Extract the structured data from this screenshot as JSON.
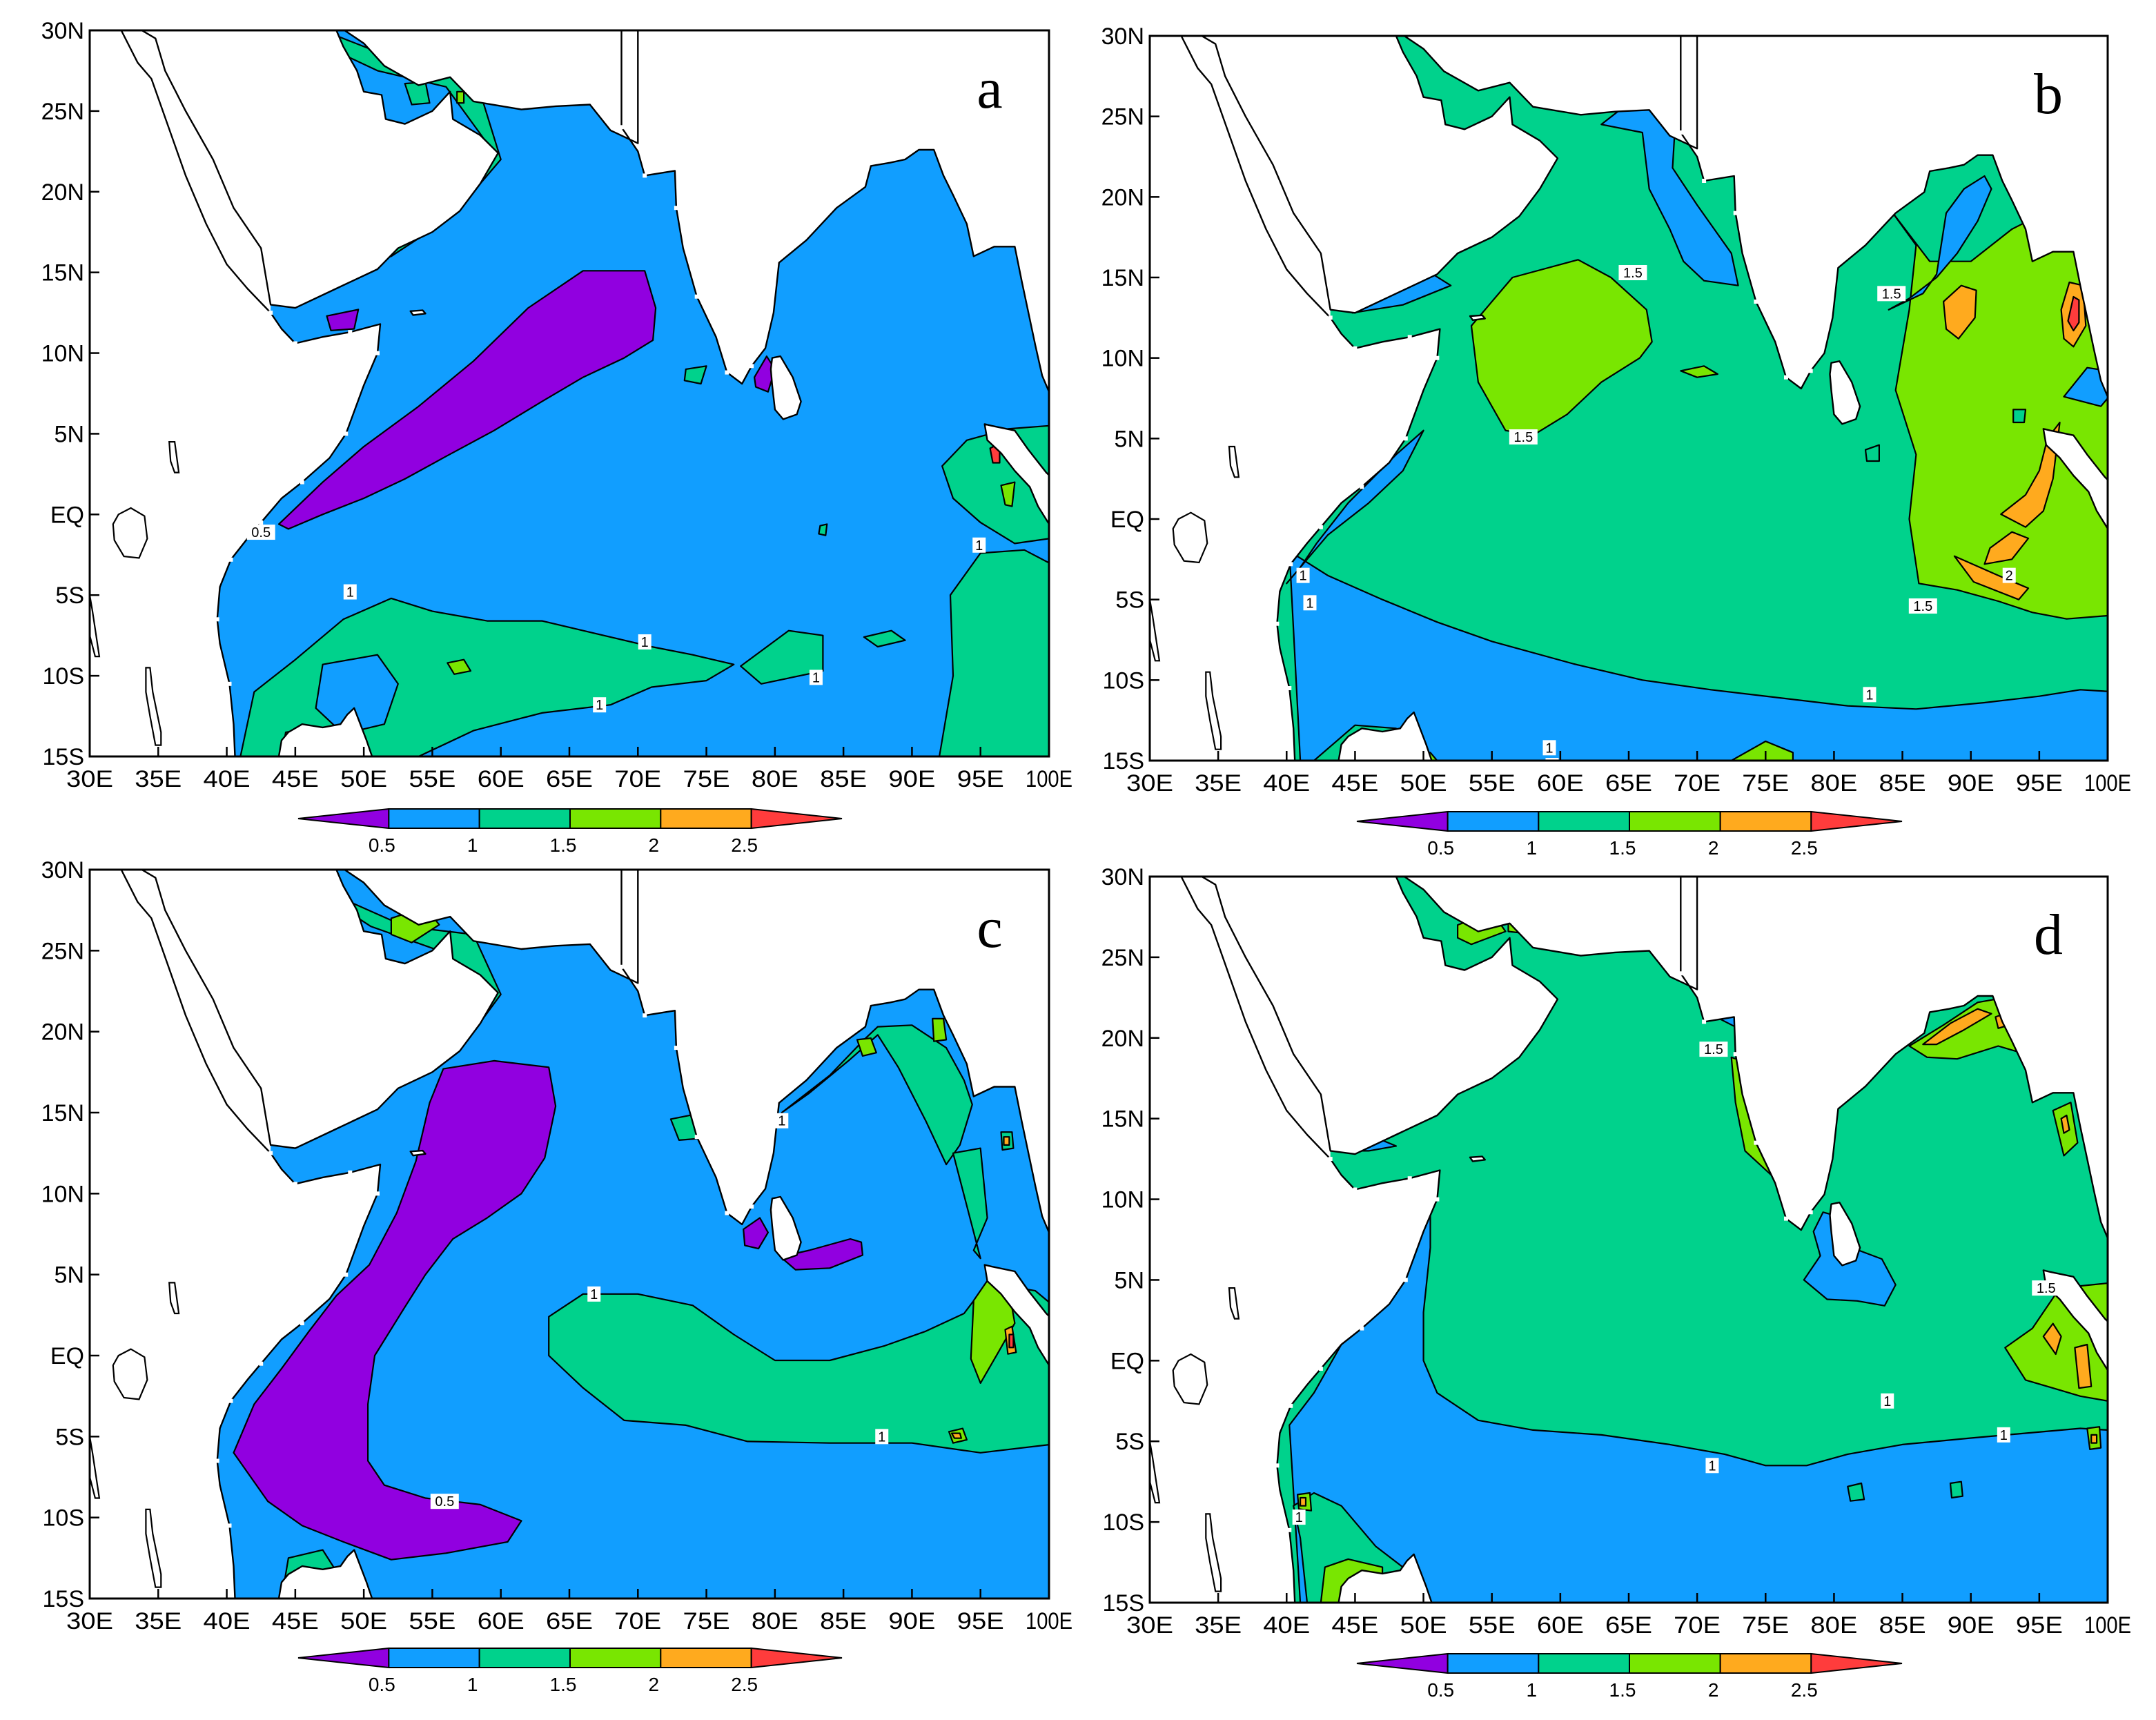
{
  "figure": {
    "panels": [
      {
        "letter": "a",
        "regime": "a"
      },
      {
        "letter": "b",
        "regime": "b"
      },
      {
        "letter": "c",
        "regime": "c"
      },
      {
        "letter": "d",
        "regime": "d"
      }
    ],
    "x_ticks": [
      "30E",
      "35E",
      "40E",
      "45E",
      "50E",
      "55E",
      "60E",
      "65E",
      "70E",
      "75E",
      "80E",
      "85E",
      "90E",
      "95E",
      "100E"
    ],
    "y_ticks": [
      "30N",
      "25N",
      "20N",
      "15N",
      "10N",
      "5N",
      "EQ",
      "5S",
      "10S",
      "15S"
    ],
    "colorbar": {
      "levels": [
        "0.5",
        "1",
        "1.5",
        "2",
        "2.5"
      ],
      "colors": [
        "#9100e0",
        "#119eff",
        "#00d28c",
        "#79e601",
        "#ffaa1e",
        "#ff3c3c"
      ]
    },
    "contour_labels": {
      "a": [
        "0.5",
        "1",
        "1",
        "1",
        "1",
        "1"
      ],
      "b": [
        "1.5",
        "1.5",
        "1.5",
        "1",
        "1",
        "1.5",
        "2",
        "1",
        "1",
        "1"
      ],
      "c": [
        "1",
        "1",
        "0.5",
        "1"
      ],
      "d": [
        "1.5",
        "1",
        "1",
        "1",
        "1",
        "1.5"
      ]
    },
    "colors": {
      "land": "#ffffff",
      "coast": "#000000",
      "frame": "#000000"
    }
  }
}
